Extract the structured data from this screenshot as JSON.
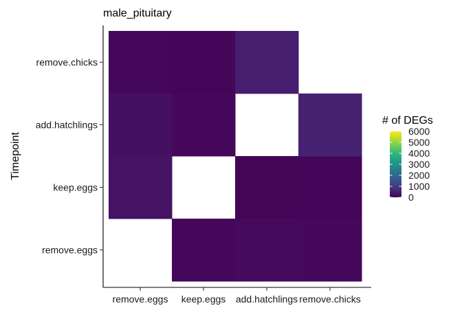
{
  "chart_data": {
    "type": "heatmap",
    "title": "male_pituitary",
    "xlabel": "",
    "ylabel": "Timepoint",
    "x_categories": [
      "remove.eggs",
      "keep.eggs",
      "add.hatchlings",
      "remove.chicks"
    ],
    "y_categories": [
      "remove.eggs",
      "keep.eggs",
      "add.hatchlings",
      "remove.chicks"
    ],
    "y_order_bottom_to_top": [
      "remove.eggs",
      "keep.eggs",
      "add.hatchlings",
      "remove.chicks"
    ],
    "cells": [
      {
        "x": "keep.eggs",
        "y": "remove.eggs",
        "value": 100
      },
      {
        "x": "add.hatchlings",
        "y": "remove.eggs",
        "value": 150
      },
      {
        "x": "remove.chicks",
        "y": "remove.eggs",
        "value": 120
      },
      {
        "x": "remove.eggs",
        "y": "keep.eggs",
        "value": 300
      },
      {
        "x": "add.hatchlings",
        "y": "keep.eggs",
        "value": 60
      },
      {
        "x": "remove.chicks",
        "y": "keep.eggs",
        "value": 80
      },
      {
        "x": "remove.eggs",
        "y": "add.hatchlings",
        "value": 250
      },
      {
        "x": "keep.eggs",
        "y": "add.hatchlings",
        "value": 120
      },
      {
        "x": "remove.chicks",
        "y": "add.hatchlings",
        "value": 550
      },
      {
        "x": "remove.eggs",
        "y": "remove.chicks",
        "value": 100
      },
      {
        "x": "keep.eggs",
        "y": "remove.chicks",
        "value": 80
      },
      {
        "x": "add.hatchlings",
        "y": "remove.chicks",
        "value": 500
      }
    ],
    "legend": {
      "title": "# of DEGs",
      "placement": "right",
      "min": 0,
      "max": 6000,
      "breaks": [
        0,
        1000,
        2000,
        3000,
        4000,
        5000,
        6000
      ],
      "palette": "viridis"
    },
    "colors": {
      "viridis": [
        "#440154",
        "#482878",
        "#3E4A89",
        "#31688E",
        "#26828E",
        "#1F9E89",
        "#35B779",
        "#6DCD59",
        "#B4DE2C",
        "#FDE725"
      ]
    },
    "grid": false
  }
}
